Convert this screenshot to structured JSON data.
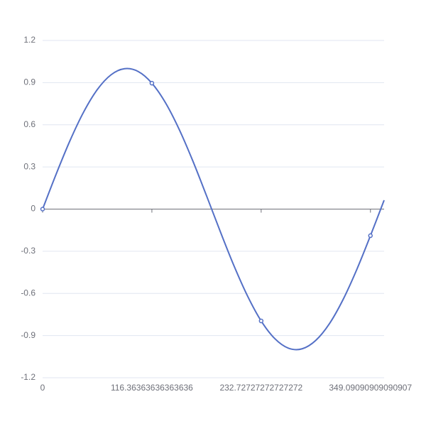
{
  "chart_data": {
    "type": "line",
    "x": [
      0,
      14.545,
      29.091,
      43.636,
      58.182,
      72.727,
      87.273,
      101.818,
      116.364,
      130.909,
      145.455,
      160,
      174.545,
      189.091,
      203.636,
      218.182,
      232.727,
      247.273,
      261.818,
      276.364,
      290.909,
      305.455,
      320,
      334.545,
      349.091,
      363.636
    ],
    "series": [
      {
        "color": "#5470c6",
        "values": [
          0,
          0.251,
          0.486,
          0.69,
          0.85,
          0.955,
          0.999,
          0.979,
          0.896,
          0.756,
          0.567,
          0.342,
          0.095,
          -0.158,
          -0.401,
          -0.618,
          -0.796,
          -0.922,
          -0.99,
          -0.994,
          -0.934,
          -0.815,
          -0.643,
          -0.43,
          -0.189,
          0.063
        ]
      }
    ],
    "xlim": [
      0,
      363.636
    ],
    "xticks": [
      0,
      116.36363636363636,
      232.72727272727272,
      {
        "value": 349.09090909090907,
        "label": "349.09090909090907"
      }
    ],
    "ylim": [
      -1.2,
      1.2
    ],
    "yticks": [
      1.2,
      0.9,
      0.6,
      0.3,
      0,
      -0.3,
      -0.6,
      -0.9,
      -1.2
    ],
    "grid": true
  }
}
